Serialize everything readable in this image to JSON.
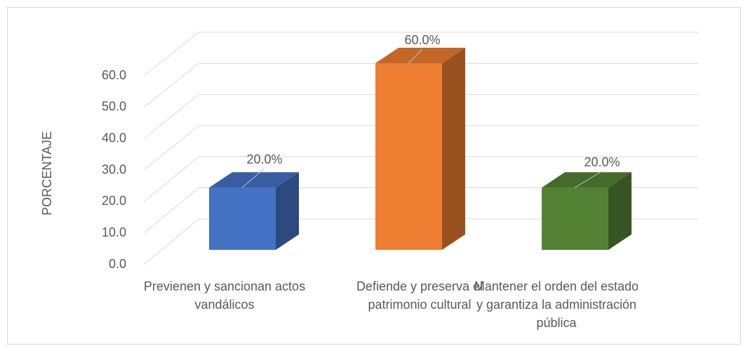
{
  "chart_data": {
    "type": "bar3d",
    "y_label": "PORCENTAJE",
    "categories": [
      "Previenen y sancionan actos vandálicos",
      "Defiende y preserva el patrimonio cultural",
      "Mantener el orden del estado y garantiza la administración pública"
    ],
    "values": [
      20,
      60,
      20
    ],
    "value_labels": [
      "20.0%",
      "60.0%",
      "20.0%"
    ],
    "colors": [
      "#4472c4",
      "#ed7d31",
      "#548235"
    ],
    "ylim": [
      0,
      60
    ],
    "yticks": [
      {
        "value": 0,
        "label": "0.0"
      },
      {
        "value": 10,
        "label": "10.0"
      },
      {
        "value": 20,
        "label": "20.0"
      },
      {
        "value": 30,
        "label": "30.0"
      },
      {
        "value": 40,
        "label": "40.0"
      },
      {
        "value": 50,
        "label": "50.0"
      },
      {
        "value": 60,
        "label": "60.0"
      }
    ],
    "grid": true
  }
}
